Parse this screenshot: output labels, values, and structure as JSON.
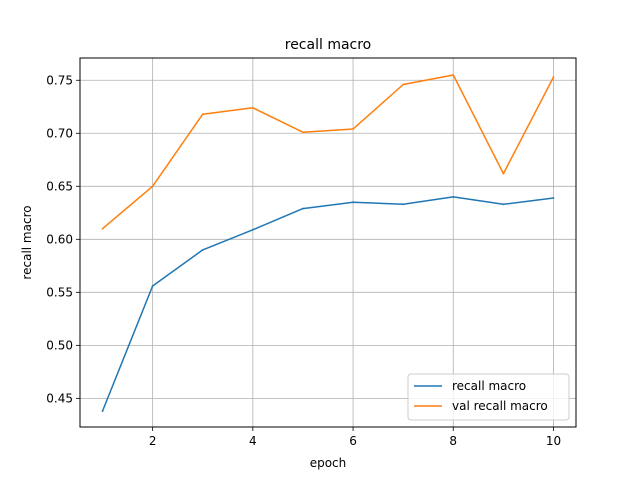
{
  "chart_data": {
    "type": "line",
    "title": "recall macro",
    "xlabel": "epoch",
    "ylabel": "recall macro",
    "xlim": [
      0.55,
      10.45
    ],
    "ylim": [
      0.423,
      0.771
    ],
    "x_ticks": [
      2,
      4,
      6,
      8,
      10
    ],
    "x_tick_labels": [
      "2",
      "4",
      "6",
      "8",
      "10"
    ],
    "y_ticks": [
      0.45,
      0.5,
      0.55,
      0.6,
      0.65,
      0.7,
      0.75
    ],
    "y_tick_labels": [
      "0.45",
      "0.50",
      "0.55",
      "0.60",
      "0.65",
      "0.70",
      "0.75"
    ],
    "grid": true,
    "legend_position": "lower-right",
    "x": [
      1,
      2,
      3,
      4,
      5,
      6,
      7,
      8,
      9,
      10
    ],
    "series": [
      {
        "name": "recall macro",
        "color": "#1f77b4",
        "values": [
          0.438,
          0.556,
          0.59,
          0.609,
          0.629,
          0.635,
          0.633,
          0.64,
          0.633,
          0.639
        ]
      },
      {
        "name": "val recall macro",
        "color": "#ff7f0e",
        "values": [
          0.61,
          0.65,
          0.718,
          0.724,
          0.701,
          0.704,
          0.746,
          0.755,
          0.662,
          0.753
        ]
      }
    ]
  }
}
